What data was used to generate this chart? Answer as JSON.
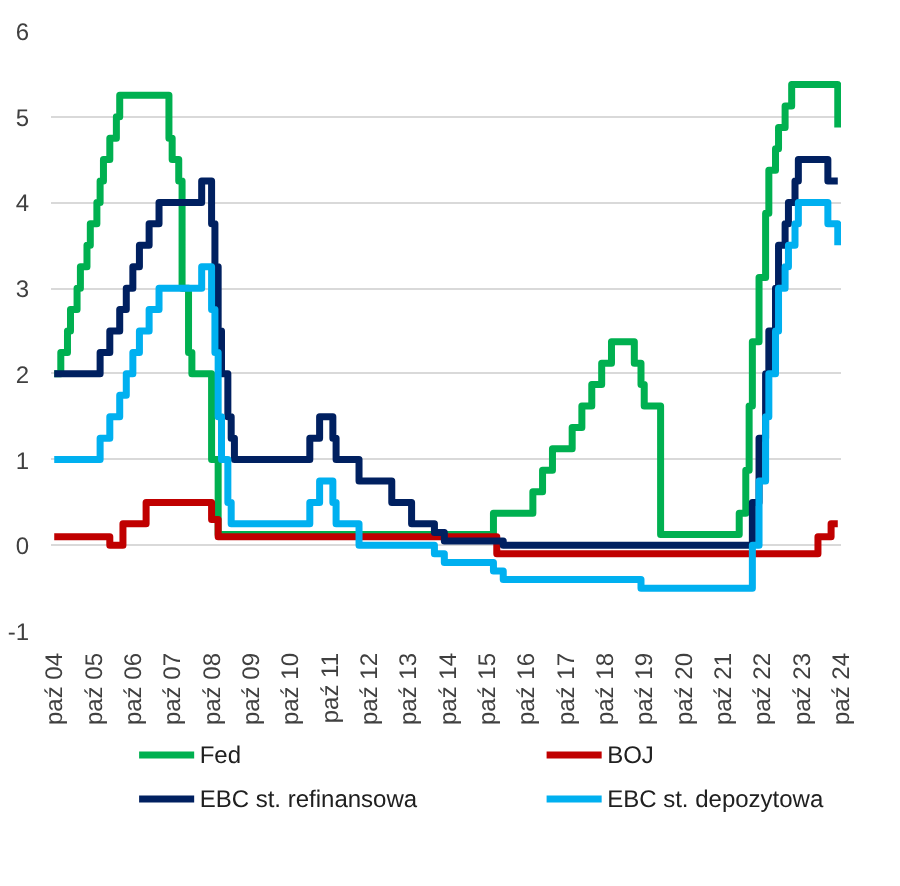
{
  "chart_data": {
    "type": "step",
    "series": [
      {
        "name": "Fed",
        "color": "#00b050",
        "x": [
          "2004-10",
          "2004-12",
          "2005-02",
          "2005-03",
          "2005-05",
          "2005-06",
          "2005-08",
          "2005-09",
          "2005-11",
          "2005-12",
          "2006-01",
          "2006-03",
          "2006-05",
          "2006-06",
          "2007-09",
          "2007-10",
          "2007-12",
          "2008-01",
          "2008-03",
          "2008-04",
          "2008-10",
          "2008-12",
          "2015-12",
          "2016-12",
          "2017-03",
          "2017-06",
          "2017-12",
          "2018-03",
          "2018-06",
          "2018-09",
          "2018-12",
          "2019-07",
          "2019-09",
          "2019-10",
          "2020-03",
          "2022-03",
          "2022-05",
          "2022-06",
          "2022-07",
          "2022-09",
          "2022-11",
          "2022-12",
          "2023-02",
          "2023-03",
          "2023-05",
          "2023-07",
          "2024-09"
        ],
        "values": [
          2,
          2.25,
          2.5,
          2.75,
          3,
          3.25,
          3.5,
          3.75,
          4,
          4.25,
          4.5,
          4.75,
          5,
          5.25,
          4.75,
          4.5,
          4.25,
          3,
          2.25,
          2,
          1,
          0.125,
          0.375,
          0.625,
          0.875,
          1.125,
          1.375,
          1.625,
          1.875,
          2.125,
          2.375,
          2.125,
          1.875,
          1.625,
          0.125,
          0.375,
          0.875,
          1.625,
          2.375,
          3.125,
          3.875,
          4.375,
          4.625,
          4.875,
          5.125,
          5.375,
          4.875
        ]
      },
      {
        "name": "BOJ",
        "color": "#c00000",
        "x": [
          "2004-10",
          "2006-03",
          "2006-07",
          "2007-02",
          "2008-10",
          "2008-12",
          "2016-01",
          "2024-03",
          "2024-07",
          "2024-09"
        ],
        "values": [
          0.1,
          0,
          0.25,
          0.5,
          0.3,
          0.1,
          -0.1,
          0.1,
          0.25,
          0.25
        ]
      },
      {
        "name": "EBC st. refinansowa",
        "color": "#002060",
        "x": [
          "2004-10",
          "2005-12",
          "2006-03",
          "2006-06",
          "2006-08",
          "2006-10",
          "2006-12",
          "2007-03",
          "2007-06",
          "2008-07",
          "2008-10",
          "2008-11",
          "2008-12",
          "2009-01",
          "2009-03",
          "2009-04",
          "2009-05",
          "2011-04",
          "2011-07",
          "2011-11",
          "2011-12",
          "2012-07",
          "2013-05",
          "2013-11",
          "2014-06",
          "2014-09",
          "2016-03",
          "2022-07",
          "2022-09",
          "2022-11",
          "2022-12",
          "2023-02",
          "2023-03",
          "2023-05",
          "2023-06",
          "2023-08",
          "2023-09",
          "2024-06",
          "2024-09"
        ],
        "values": [
          2,
          2.25,
          2.5,
          2.75,
          3,
          3.25,
          3.5,
          3.75,
          4,
          4.25,
          3.75,
          3.25,
          2.5,
          2,
          1.5,
          1.25,
          1,
          1.25,
          1.5,
          1.25,
          1,
          0.75,
          0.5,
          0.25,
          0.15,
          0.05,
          0,
          0.5,
          1.25,
          2,
          2.5,
          3,
          3.5,
          3.75,
          4,
          4.25,
          4.5,
          4.25,
          4.25
        ]
      },
      {
        "name": "EBC st. depozytowa",
        "color": "#00b0f0",
        "x": [
          "2004-10",
          "2005-12",
          "2006-03",
          "2006-06",
          "2006-08",
          "2006-10",
          "2006-12",
          "2007-03",
          "2007-06",
          "2008-07",
          "2008-10",
          "2008-11",
          "2008-12",
          "2009-01",
          "2009-03",
          "2009-04",
          "2011-04",
          "2011-07",
          "2011-11",
          "2011-12",
          "2012-07",
          "2014-06",
          "2014-09",
          "2015-12",
          "2016-03",
          "2019-09",
          "2022-07",
          "2022-09",
          "2022-11",
          "2022-12",
          "2023-02",
          "2023-03",
          "2023-05",
          "2023-06",
          "2023-08",
          "2023-09",
          "2024-06",
          "2024-09"
        ],
        "values": [
          1,
          1.25,
          1.5,
          1.75,
          2,
          2.25,
          2.5,
          2.75,
          3,
          3.25,
          2.75,
          2.25,
          1.5,
          1,
          0.5,
          0.25,
          0.5,
          0.75,
          0.5,
          0.25,
          0,
          -0.1,
          -0.2,
          -0.3,
          -0.4,
          -0.5,
          0,
          0.75,
          1.5,
          2,
          2.5,
          3,
          3.25,
          3.5,
          3.75,
          4,
          3.75,
          3.5
        ]
      }
    ],
    "xlim": [
      "2004-09",
      "2024-10"
    ],
    "xticks": [
      {
        "value": "2004-10",
        "label": "paź 04"
      },
      {
        "value": "2005-10",
        "label": "paź 05"
      },
      {
        "value": "2006-10",
        "label": "paź 06"
      },
      {
        "value": "2007-10",
        "label": "paź 07"
      },
      {
        "value": "2008-10",
        "label": "paź 08"
      },
      {
        "value": "2009-10",
        "label": "paź 09"
      },
      {
        "value": "2010-10",
        "label": "paź 10"
      },
      {
        "value": "2011-10",
        "label": "paź 11"
      },
      {
        "value": "2012-10",
        "label": "paź 12"
      },
      {
        "value": "2013-10",
        "label": "paź 13"
      },
      {
        "value": "2014-10",
        "label": "paź 14"
      },
      {
        "value": "2015-10",
        "label": "paź 15"
      },
      {
        "value": "2016-10",
        "label": "paź 16"
      },
      {
        "value": "2017-10",
        "label": "paź 17"
      },
      {
        "value": "2018-10",
        "label": "paź 18"
      },
      {
        "value": "2019-10",
        "label": "paź 19"
      },
      {
        "value": "2020-10",
        "label": "paź 20"
      },
      {
        "value": "2021-10",
        "label": "paź 21"
      },
      {
        "value": "2022-10",
        "label": "paź 22"
      },
      {
        "value": "2023-10",
        "label": "paź 23"
      },
      {
        "value": "2024-10",
        "label": "paź 24"
      }
    ],
    "ylim": [
      -1,
      6
    ],
    "yticks": [
      -1,
      0,
      1,
      2,
      3,
      4,
      5,
      6
    ],
    "grid": "y",
    "legend": "bottom"
  }
}
